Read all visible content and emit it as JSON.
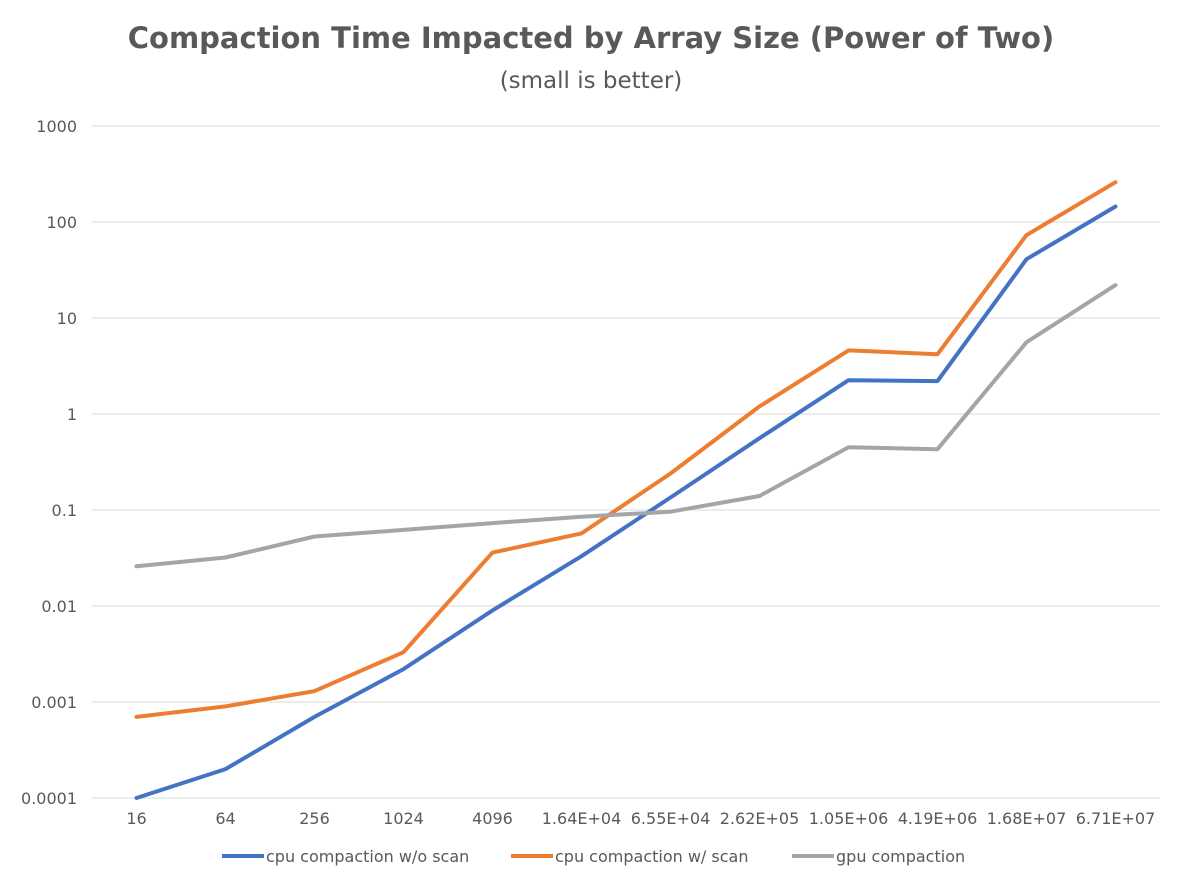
{
  "chart_data": {
    "type": "line",
    "title": "Compaction Time Impacted by Array Size (Power of Two)",
    "subtitle": "(small is better)",
    "xlabel": "",
    "ylabel": "",
    "y_scale": "log",
    "ylim": [
      0.0001,
      1000
    ],
    "y_ticks": [
      "0.0001",
      "0.001",
      "0.01",
      "0.1",
      "1",
      "10",
      "100",
      "1000"
    ],
    "categories": [
      "16",
      "64",
      "256",
      "1024",
      "4096",
      "1.64E+04",
      "6.55E+04",
      "2.62E+05",
      "1.05E+06",
      "4.19E+06",
      "1.68E+07",
      "6.71E+07"
    ],
    "grid": true,
    "legend_position": "bottom",
    "series": [
      {
        "name": "cpu compaction w/o scan",
        "color": "#4472c4",
        "values": [
          0.0001,
          0.0002,
          0.0007,
          0.0022,
          0.009,
          0.033,
          0.135,
          0.56,
          2.25,
          2.2,
          41,
          145
        ]
      },
      {
        "name": "cpu compaction w/ scan",
        "color": "#ed7d31",
        "values": [
          0.0007,
          0.0009,
          0.0013,
          0.0033,
          0.036,
          0.057,
          0.24,
          1.2,
          4.6,
          4.2,
          73,
          260
        ]
      },
      {
        "name": "gpu compaction",
        "color": "#a5a5a5",
        "values": [
          0.026,
          0.032,
          0.053,
          0.062,
          0.073,
          0.085,
          0.096,
          0.14,
          0.45,
          0.43,
          5.6,
          22
        ]
      }
    ]
  }
}
